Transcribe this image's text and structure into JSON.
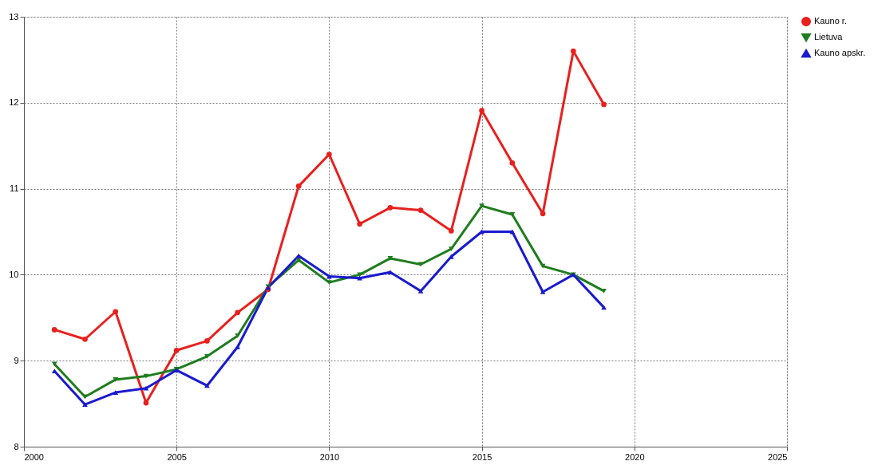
{
  "chart_data": {
    "type": "line",
    "x": [
      2001,
      2002,
      2003,
      2004,
      2005,
      2006,
      2007,
      2008,
      2009,
      2010,
      2011,
      2012,
      2013,
      2014,
      2015,
      2016,
      2017,
      2018,
      2019
    ],
    "series": [
      {
        "name": "Kauno r.",
        "color": "#e8201e",
        "marker": "circle",
        "values": [
          9.36,
          9.25,
          9.57,
          8.51,
          9.12,
          9.23,
          9.56,
          9.83,
          11.03,
          11.4,
          10.59,
          10.78,
          10.75,
          10.51,
          11.91,
          11.3,
          10.71,
          12.6,
          11.98
        ]
      },
      {
        "name": "Lietuva",
        "color": "#1e7d1e",
        "marker": "triangle-down",
        "values": [
          8.96,
          8.58,
          8.78,
          8.82,
          8.9,
          9.05,
          9.29,
          9.86,
          10.17,
          9.91,
          10.0,
          10.19,
          10.12,
          10.3,
          10.8,
          10.7,
          10.1,
          10.0,
          9.81
        ]
      },
      {
        "name": "Kauno apskr.",
        "color": "#1a1ad0",
        "marker": "triangle-up",
        "values": [
          8.88,
          8.49,
          8.63,
          8.68,
          8.89,
          8.71,
          9.16,
          9.85,
          10.22,
          9.98,
          9.96,
          10.03,
          9.81,
          10.21,
          10.5,
          10.5,
          9.8,
          10.0,
          9.62
        ]
      }
    ],
    "xlim": [
      2000,
      2025
    ],
    "xticks": [
      2000,
      2005,
      2010,
      2015,
      2020,
      2025
    ],
    "ylim": [
      8,
      13
    ],
    "yticks": [
      8,
      9,
      10,
      11,
      12,
      13
    ],
    "grid": true,
    "legend": "right",
    "line_style": "solid"
  }
}
